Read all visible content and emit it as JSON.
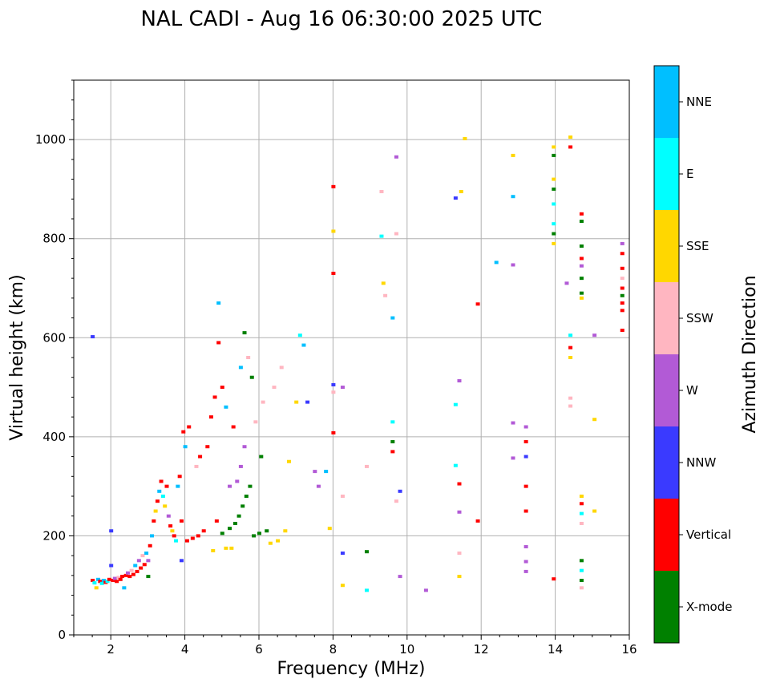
{
  "chart_data": {
    "type": "scatter",
    "title": "NAL CADI - Aug 16 06:30:00 2025 UTC",
    "xlabel": "Frequency (MHz)",
    "ylabel": "Virtual height (km)",
    "xlim": [
      1,
      16
    ],
    "ylim": [
      0,
      1120
    ],
    "xticks": [
      2,
      4,
      6,
      8,
      10,
      12,
      14,
      16
    ],
    "yticks": [
      0,
      200,
      400,
      600,
      800,
      1000
    ],
    "grid": true,
    "colorbar": {
      "label": "Azimuth Direction",
      "categories": [
        {
          "name": "X-mode",
          "color": "#008000"
        },
        {
          "name": "Vertical",
          "color": "#ff0000"
        },
        {
          "name": "NNW",
          "color": "#3a3aff"
        },
        {
          "name": "W",
          "color": "#b25ad6"
        },
        {
          "name": "SSW",
          "color": "#ffb6c1"
        },
        {
          "name": "SSE",
          "color": "#ffd700"
        },
        {
          "name": "E",
          "color": "#00ffff"
        },
        {
          "name": "NNE",
          "color": "#00bfff"
        }
      ]
    },
    "echoes": [
      {
        "f": 1.5,
        "h": 110,
        "dir": "Vertical"
      },
      {
        "f": 1.55,
        "h": 105,
        "dir": "E"
      },
      {
        "f": 1.6,
        "h": 95,
        "dir": "SSE"
      },
      {
        "f": 1.65,
        "h": 112,
        "dir": "NNE"
      },
      {
        "f": 1.7,
        "h": 108,
        "dir": "Vertical"
      },
      {
        "f": 1.75,
        "h": 104,
        "dir": "E"
      },
      {
        "f": 1.8,
        "h": 110,
        "dir": "NNE"
      },
      {
        "f": 1.85,
        "h": 106,
        "dir": "Vertical"
      },
      {
        "f": 1.9,
        "h": 108,
        "dir": "E"
      },
      {
        "f": 1.95,
        "h": 112,
        "dir": "Vertical"
      },
      {
        "f": 1.5,
        "h": 602,
        "dir": "NNW"
      },
      {
        "f": 2.0,
        "h": 210,
        "dir": "NNW"
      },
      {
        "f": 2.0,
        "h": 140,
        "dir": "NNW"
      },
      {
        "f": 2.05,
        "h": 110,
        "dir": "Vertical"
      },
      {
        "f": 2.1,
        "h": 114,
        "dir": "W"
      },
      {
        "f": 2.15,
        "h": 108,
        "dir": "Vertical"
      },
      {
        "f": 2.2,
        "h": 116,
        "dir": "SSW"
      },
      {
        "f": 2.25,
        "h": 112,
        "dir": "Vertical"
      },
      {
        "f": 2.3,
        "h": 118,
        "dir": "Vertical"
      },
      {
        "f": 2.35,
        "h": 95,
        "dir": "NNE"
      },
      {
        "f": 2.4,
        "h": 120,
        "dir": "Vertical"
      },
      {
        "f": 2.45,
        "h": 125,
        "dir": "W"
      },
      {
        "f": 2.5,
        "h": 118,
        "dir": "Vertical"
      },
      {
        "f": 2.55,
        "h": 130,
        "dir": "SSW"
      },
      {
        "f": 2.6,
        "h": 122,
        "dir": "Vertical"
      },
      {
        "f": 2.65,
        "h": 140,
        "dir": "NNE"
      },
      {
        "f": 2.7,
        "h": 128,
        "dir": "Vertical"
      },
      {
        "f": 2.75,
        "h": 150,
        "dir": "W"
      },
      {
        "f": 2.8,
        "h": 135,
        "dir": "Vertical"
      },
      {
        "f": 2.85,
        "h": 160,
        "dir": "SSW"
      },
      {
        "f": 2.9,
        "h": 142,
        "dir": "Vertical"
      },
      {
        "f": 2.95,
        "h": 165,
        "dir": "NNE"
      },
      {
        "f": 3.0,
        "h": 150,
        "dir": "W"
      },
      {
        "f": 3.0,
        "h": 118,
        "dir": "X-mode"
      },
      {
        "f": 3.05,
        "h": 180,
        "dir": "Vertical"
      },
      {
        "f": 3.1,
        "h": 200,
        "dir": "NNE"
      },
      {
        "f": 3.15,
        "h": 230,
        "dir": "Vertical"
      },
      {
        "f": 3.2,
        "h": 250,
        "dir": "SSE"
      },
      {
        "f": 3.25,
        "h": 270,
        "dir": "Vertical"
      },
      {
        "f": 3.3,
        "h": 290,
        "dir": "NNE"
      },
      {
        "f": 3.35,
        "h": 310,
        "dir": "Vertical"
      },
      {
        "f": 3.4,
        "h": 280,
        "dir": "E"
      },
      {
        "f": 3.45,
        "h": 260,
        "dir": "SSE"
      },
      {
        "f": 3.5,
        "h": 300,
        "dir": "Vertical"
      },
      {
        "f": 3.55,
        "h": 240,
        "dir": "W"
      },
      {
        "f": 3.6,
        "h": 220,
        "dir": "Vertical"
      },
      {
        "f": 3.65,
        "h": 210,
        "dir": "SSE"
      },
      {
        "f": 3.7,
        "h": 200,
        "dir": "Vertical"
      },
      {
        "f": 3.75,
        "h": 190,
        "dir": "E"
      },
      {
        "f": 3.8,
        "h": 300,
        "dir": "NNE"
      },
      {
        "f": 3.85,
        "h": 320,
        "dir": "Vertical"
      },
      {
        "f": 3.9,
        "h": 230,
        "dir": "Vertical"
      },
      {
        "f": 3.9,
        "h": 150,
        "dir": "NNW"
      },
      {
        "f": 3.95,
        "h": 410,
        "dir": "Vertical"
      },
      {
        "f": 4.0,
        "h": 380,
        "dir": "NNE"
      },
      {
        "f": 4.05,
        "h": 190,
        "dir": "Vertical"
      },
      {
        "f": 4.1,
        "h": 420,
        "dir": "Vertical"
      },
      {
        "f": 4.2,
        "h": 195,
        "dir": "Vertical"
      },
      {
        "f": 4.3,
        "h": 340,
        "dir": "SSW"
      },
      {
        "f": 4.35,
        "h": 200,
        "dir": "Vertical"
      },
      {
        "f": 4.4,
        "h": 360,
        "dir": "Vertical"
      },
      {
        "f": 4.5,
        "h": 210,
        "dir": "Vertical"
      },
      {
        "f": 4.6,
        "h": 380,
        "dir": "Vertical"
      },
      {
        "f": 4.7,
        "h": 440,
        "dir": "Vertical"
      },
      {
        "f": 4.75,
        "h": 170,
        "dir": "SSE"
      },
      {
        "f": 4.8,
        "h": 480,
        "dir": "Vertical"
      },
      {
        "f": 4.85,
        "h": 230,
        "dir": "Vertical"
      },
      {
        "f": 4.9,
        "h": 670,
        "dir": "NNE"
      },
      {
        "f": 4.9,
        "h": 590,
        "dir": "Vertical"
      },
      {
        "f": 5.0,
        "h": 500,
        "dir": "Vertical"
      },
      {
        "f": 5.0,
        "h": 205,
        "dir": "X-mode"
      },
      {
        "f": 5.1,
        "h": 460,
        "dir": "NNE"
      },
      {
        "f": 5.1,
        "h": 175,
        "dir": "SSE"
      },
      {
        "f": 5.2,
        "h": 300,
        "dir": "W"
      },
      {
        "f": 5.2,
        "h": 215,
        "dir": "X-mode"
      },
      {
        "f": 5.25,
        "h": 175,
        "dir": "SSE"
      },
      {
        "f": 5.3,
        "h": 420,
        "dir": "Vertical"
      },
      {
        "f": 5.35,
        "h": 225,
        "dir": "X-mode"
      },
      {
        "f": 5.4,
        "h": 310,
        "dir": "W"
      },
      {
        "f": 5.45,
        "h": 240,
        "dir": "X-mode"
      },
      {
        "f": 5.5,
        "h": 540,
        "dir": "NNE"
      },
      {
        "f": 5.5,
        "h": 340,
        "dir": "W"
      },
      {
        "f": 5.55,
        "h": 260,
        "dir": "X-mode"
      },
      {
        "f": 5.6,
        "h": 610,
        "dir": "X-mode"
      },
      {
        "f": 5.6,
        "h": 380,
        "dir": "W"
      },
      {
        "f": 5.65,
        "h": 280,
        "dir": "X-mode"
      },
      {
        "f": 5.7,
        "h": 560,
        "dir": "SSW"
      },
      {
        "f": 5.75,
        "h": 300,
        "dir": "X-mode"
      },
      {
        "f": 5.8,
        "h": 520,
        "dir": "X-mode"
      },
      {
        "f": 5.85,
        "h": 200,
        "dir": "X-mode"
      },
      {
        "f": 5.9,
        "h": 430,
        "dir": "SSW"
      },
      {
        "f": 6.0,
        "h": 205,
        "dir": "X-mode"
      },
      {
        "f": 6.05,
        "h": 360,
        "dir": "X-mode"
      },
      {
        "f": 6.1,
        "h": 470,
        "dir": "SSW"
      },
      {
        "f": 6.2,
        "h": 210,
        "dir": "X-mode"
      },
      {
        "f": 6.3,
        "h": 185,
        "dir": "SSE"
      },
      {
        "f": 6.4,
        "h": 500,
        "dir": "SSW"
      },
      {
        "f": 6.5,
        "h": 190,
        "dir": "SSE"
      },
      {
        "f": 6.6,
        "h": 540,
        "dir": "SSW"
      },
      {
        "f": 6.7,
        "h": 210,
        "dir": "SSE"
      },
      {
        "f": 6.8,
        "h": 350,
        "dir": "SSE"
      },
      {
        "f": 7.0,
        "h": 470,
        "dir": "SSE"
      },
      {
        "f": 7.1,
        "h": 605,
        "dir": "E"
      },
      {
        "f": 7.2,
        "h": 585,
        "dir": "NNE"
      },
      {
        "f": 7.3,
        "h": 470,
        "dir": "NNW"
      },
      {
        "f": 7.5,
        "h": 330,
        "dir": "W"
      },
      {
        "f": 7.6,
        "h": 300,
        "dir": "W"
      },
      {
        "f": 7.8,
        "h": 330,
        "dir": "NNE"
      },
      {
        "f": 7.9,
        "h": 215,
        "dir": "SSE"
      },
      {
        "f": 8.0,
        "h": 905,
        "dir": "Vertical"
      },
      {
        "f": 8.0,
        "h": 815,
        "dir": "SSE"
      },
      {
        "f": 8.0,
        "h": 730,
        "dir": "Vertical"
      },
      {
        "f": 8.0,
        "h": 505,
        "dir": "NNW"
      },
      {
        "f": 8.0,
        "h": 490,
        "dir": "SSW"
      },
      {
        "f": 8.0,
        "h": 408,
        "dir": "Vertical"
      },
      {
        "f": 8.25,
        "h": 500,
        "dir": "W"
      },
      {
        "f": 8.25,
        "h": 280,
        "dir": "SSW"
      },
      {
        "f": 8.25,
        "h": 165,
        "dir": "NNW"
      },
      {
        "f": 8.25,
        "h": 100,
        "dir": "SSE"
      },
      {
        "f": 8.9,
        "h": 340,
        "dir": "SSW"
      },
      {
        "f": 8.9,
        "h": 168,
        "dir": "X-mode"
      },
      {
        "f": 8.9,
        "h": 90,
        "dir": "E"
      },
      {
        "f": 9.3,
        "h": 895,
        "dir": "SSW"
      },
      {
        "f": 9.3,
        "h": 805,
        "dir": "E"
      },
      {
        "f": 9.35,
        "h": 710,
        "dir": "SSE"
      },
      {
        "f": 9.4,
        "h": 685,
        "dir": "SSW"
      },
      {
        "f": 9.6,
        "h": 640,
        "dir": "NNE"
      },
      {
        "f": 9.6,
        "h": 430,
        "dir": "E"
      },
      {
        "f": 9.6,
        "h": 390,
        "dir": "X-mode"
      },
      {
        "f": 9.6,
        "h": 370,
        "dir": "Vertical"
      },
      {
        "f": 9.7,
        "h": 965,
        "dir": "W"
      },
      {
        "f": 9.7,
        "h": 810,
        "dir": "SSW"
      },
      {
        "f": 9.7,
        "h": 270,
        "dir": "SSW"
      },
      {
        "f": 9.8,
        "h": 290,
        "dir": "NNW"
      },
      {
        "f": 9.8,
        "h": 118,
        "dir": "W"
      },
      {
        "f": 10.5,
        "h": 90,
        "dir": "W"
      },
      {
        "f": 11.3,
        "h": 882,
        "dir": "NNW"
      },
      {
        "f": 11.3,
        "h": 465,
        "dir": "E"
      },
      {
        "f": 11.3,
        "h": 342,
        "dir": "E"
      },
      {
        "f": 11.45,
        "h": 895,
        "dir": "SSE"
      },
      {
        "f": 11.4,
        "h": 513,
        "dir": "W"
      },
      {
        "f": 11.4,
        "h": 305,
        "dir": "Vertical"
      },
      {
        "f": 11.4,
        "h": 248,
        "dir": "W"
      },
      {
        "f": 11.4,
        "h": 165,
        "dir": "SSW"
      },
      {
        "f": 11.4,
        "h": 118,
        "dir": "SSE"
      },
      {
        "f": 11.55,
        "h": 1002,
        "dir": "SSE"
      },
      {
        "f": 11.9,
        "h": 668,
        "dir": "Vertical"
      },
      {
        "f": 11.9,
        "h": 230,
        "dir": "Vertical"
      },
      {
        "f": 12.4,
        "h": 752,
        "dir": "NNE"
      },
      {
        "f": 12.85,
        "h": 968,
        "dir": "SSE"
      },
      {
        "f": 12.85,
        "h": 885,
        "dir": "NNE"
      },
      {
        "f": 12.85,
        "h": 747,
        "dir": "W"
      },
      {
        "f": 12.85,
        "h": 428,
        "dir": "W"
      },
      {
        "f": 12.85,
        "h": 357,
        "dir": "W"
      },
      {
        "f": 13.2,
        "h": 420,
        "dir": "W"
      },
      {
        "f": 13.2,
        "h": 390,
        "dir": "Vertical"
      },
      {
        "f": 13.2,
        "h": 360,
        "dir": "NNW"
      },
      {
        "f": 13.2,
        "h": 300,
        "dir": "Vertical"
      },
      {
        "f": 13.2,
        "h": 250,
        "dir": "Vertical"
      },
      {
        "f": 13.2,
        "h": 178,
        "dir": "W"
      },
      {
        "f": 13.2,
        "h": 148,
        "dir": "W"
      },
      {
        "f": 13.2,
        "h": 128,
        "dir": "W"
      },
      {
        "f": 13.95,
        "h": 985,
        "dir": "SSE"
      },
      {
        "f": 13.95,
        "h": 968,
        "dir": "X-mode"
      },
      {
        "f": 13.95,
        "h": 920,
        "dir": "SSE"
      },
      {
        "f": 13.95,
        "h": 900,
        "dir": "X-mode"
      },
      {
        "f": 13.95,
        "h": 870,
        "dir": "E"
      },
      {
        "f": 13.95,
        "h": 830,
        "dir": "E"
      },
      {
        "f": 13.95,
        "h": 810,
        "dir": "X-mode"
      },
      {
        "f": 13.95,
        "h": 790,
        "dir": "SSE"
      },
      {
        "f": 13.95,
        "h": 113,
        "dir": "Vertical"
      },
      {
        "f": 14.3,
        "h": 710,
        "dir": "W"
      },
      {
        "f": 14.4,
        "h": 1005,
        "dir": "SSE"
      },
      {
        "f": 14.4,
        "h": 985,
        "dir": "Vertical"
      },
      {
        "f": 14.4,
        "h": 605,
        "dir": "E"
      },
      {
        "f": 14.4,
        "h": 580,
        "dir": "Vertical"
      },
      {
        "f": 14.4,
        "h": 560,
        "dir": "SSE"
      },
      {
        "f": 14.4,
        "h": 478,
        "dir": "SSW"
      },
      {
        "f": 14.4,
        "h": 462,
        "dir": "SSW"
      },
      {
        "f": 14.7,
        "h": 850,
        "dir": "Vertical"
      },
      {
        "f": 14.7,
        "h": 835,
        "dir": "X-mode"
      },
      {
        "f": 14.7,
        "h": 785,
        "dir": "X-mode"
      },
      {
        "f": 14.7,
        "h": 760,
        "dir": "Vertical"
      },
      {
        "f": 14.7,
        "h": 745,
        "dir": "W"
      },
      {
        "f": 14.7,
        "h": 720,
        "dir": "X-mode"
      },
      {
        "f": 14.7,
        "h": 690,
        "dir": "X-mode"
      },
      {
        "f": 14.7,
        "h": 680,
        "dir": "SSE"
      },
      {
        "f": 14.7,
        "h": 280,
        "dir": "SSE"
      },
      {
        "f": 14.7,
        "h": 265,
        "dir": "Vertical"
      },
      {
        "f": 14.7,
        "h": 245,
        "dir": "E"
      },
      {
        "f": 14.7,
        "h": 225,
        "dir": "SSW"
      },
      {
        "f": 14.7,
        "h": 150,
        "dir": "X-mode"
      },
      {
        "f": 14.7,
        "h": 130,
        "dir": "E"
      },
      {
        "f": 14.7,
        "h": 110,
        "dir": "X-mode"
      },
      {
        "f": 14.7,
        "h": 95,
        "dir": "SSW"
      },
      {
        "f": 15.05,
        "h": 605,
        "dir": "W"
      },
      {
        "f": 15.05,
        "h": 435,
        "dir": "SSE"
      },
      {
        "f": 15.05,
        "h": 250,
        "dir": "SSE"
      },
      {
        "f": 15.8,
        "h": 790,
        "dir": "W"
      },
      {
        "f": 15.8,
        "h": 770,
        "dir": "Vertical"
      },
      {
        "f": 15.8,
        "h": 740,
        "dir": "Vertical"
      },
      {
        "f": 15.8,
        "h": 720,
        "dir": "SSW"
      },
      {
        "f": 15.8,
        "h": 700,
        "dir": "Vertical"
      },
      {
        "f": 15.8,
        "h": 685,
        "dir": "X-mode"
      },
      {
        "f": 15.8,
        "h": 670,
        "dir": "Vertical"
      },
      {
        "f": 15.8,
        "h": 655,
        "dir": "Vertical"
      },
      {
        "f": 15.8,
        "h": 615,
        "dir": "Vertical"
      }
    ]
  }
}
